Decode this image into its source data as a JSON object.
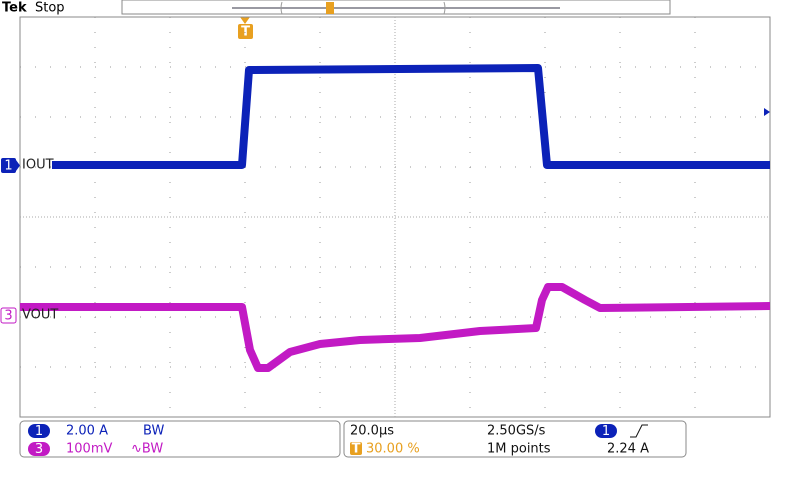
{
  "header": {
    "brand": "Tek",
    "status": "Stop"
  },
  "trigger_marker": "T",
  "channels": [
    {
      "marker": "1",
      "label": "IOUT",
      "scale": "2.00 A",
      "bandwidth": "BW"
    },
    {
      "marker": "3",
      "label": "VOUT",
      "scale": "100mV",
      "bandwidth": "∿BW"
    }
  ],
  "timebase": {
    "scale": "20.0μs",
    "sample_rate": "2.50GS/s",
    "position_marker": "T",
    "position": "30.00 %",
    "record_length": "1M points"
  },
  "trigger": {
    "source": "1",
    "level": "2.24 A"
  }
}
